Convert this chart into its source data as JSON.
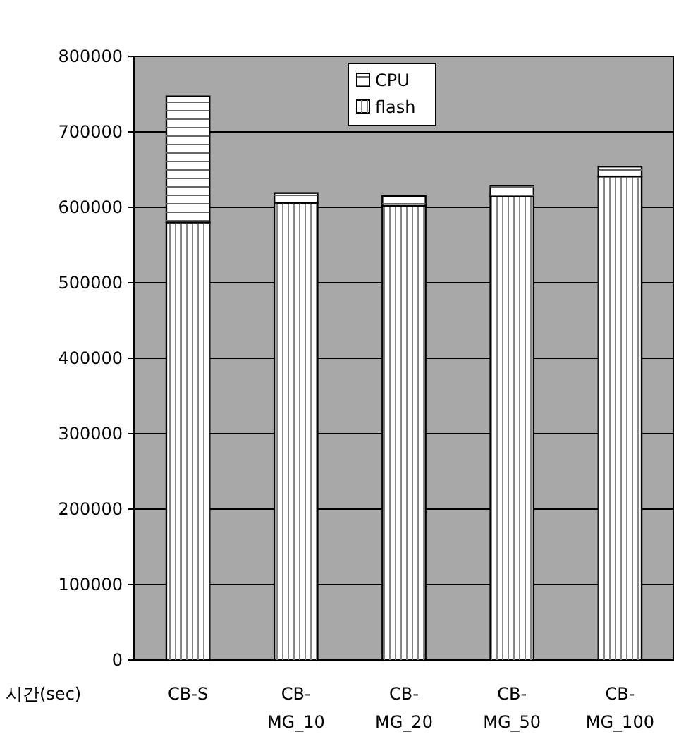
{
  "chart_data": {
    "type": "bar",
    "stacked": true,
    "ylabel": "시간(sec)",
    "categories": [
      "CB-S",
      "CB-\nMG_10",
      "CB-\nMG_20",
      "CB-\nMG_50",
      "CB-\nMG_100"
    ],
    "series": [
      {
        "name": "flash",
        "color": "#ffffff",
        "values": [
          580000,
          606000,
          602000,
          615000,
          641000
        ]
      },
      {
        "name": "CPU",
        "color": "#ffffff",
        "values": [
          167000,
          13000,
          13000,
          13000,
          13000
        ]
      }
    ],
    "ylim": [
      0,
      800000
    ],
    "yticks": [
      0,
      100000,
      200000,
      300000,
      400000,
      500000,
      600000,
      700000,
      800000
    ],
    "grid": "y",
    "legend": "top"
  }
}
